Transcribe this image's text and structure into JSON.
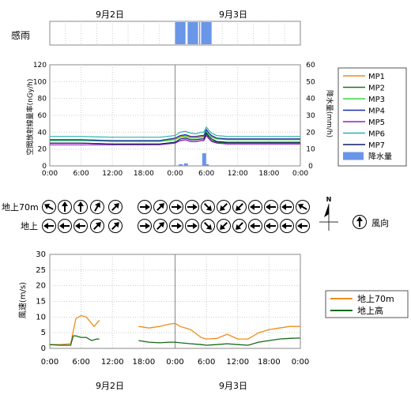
{
  "labels": {
    "date_top_left": "9月2日",
    "date_top_right": "9月3日",
    "date_bottom_left": "9月2日",
    "date_bottom_right": "9月3日",
    "rain_sense": "感雨",
    "ylabel_left": "空間放射線量率(nGy/h)",
    "ylabel_right": "降水量(mm/h)",
    "wind_row_upper": "地上70m",
    "wind_row_lower": "地上",
    "wind_dir_legend": "風向",
    "north": "N",
    "ylabel_wind": "風速(m/s)"
  },
  "colors": {
    "MP1": "#f08c1e",
    "MP2": "#137a13",
    "MP3": "#38d838",
    "MP4": "#1a2ab8",
    "MP5": "#9a1ac2",
    "MP6": "#28b4b4",
    "MP7": "#101a6a",
    "rain": "#6a96e8",
    "wind70": "#f08c1e",
    "windGround": "#136a13"
  },
  "time_ticks": [
    "0:00",
    "6:00",
    "12:00",
    "18:00",
    "0:00",
    "6:00",
    "12:00",
    "18:00",
    "0:00"
  ],
  "chart_data": [
    {
      "type": "bar",
      "name": "rain_sense",
      "x_unit": "hours from 9月2日 0:00",
      "xlim": [
        0,
        48
      ],
      "rain_sensed_intervals": [
        [
          24.0,
          26.0
        ],
        [
          26.4,
          28.4
        ],
        [
          28.6,
          28.8
        ],
        [
          29.0,
          31.0
        ]
      ]
    },
    {
      "type": "line",
      "name": "dose_rate",
      "ylim_left": [
        0,
        120
      ],
      "yticks_left": [
        0,
        20,
        40,
        60,
        80,
        100,
        120
      ],
      "ylim_right": [
        0,
        60
      ],
      "yticks_right": [
        0,
        10,
        20,
        30,
        40,
        50,
        60
      ],
      "xlim": [
        0,
        48
      ],
      "x": [
        0,
        6,
        12,
        18,
        21,
        24,
        25,
        26,
        27,
        28,
        29,
        29.5,
        30,
        30.5,
        31,
        32,
        34,
        36,
        42,
        48
      ],
      "series": [
        {
          "name": "MP1",
          "values": [
            31,
            31,
            30,
            30,
            30,
            32,
            35,
            36,
            34,
            34,
            35,
            35,
            42,
            38,
            35,
            33,
            32,
            32,
            32,
            32
          ]
        },
        {
          "name": "MP2",
          "values": [
            27,
            27,
            26,
            26,
            26,
            28,
            30,
            31,
            29,
            29,
            30,
            30,
            37,
            33,
            30,
            28,
            27,
            27,
            27,
            27
          ]
        },
        {
          "name": "MP3",
          "values": [
            30,
            30,
            29,
            29,
            29,
            31,
            34,
            35,
            33,
            33,
            34,
            34,
            41,
            37,
            34,
            32,
            31,
            31,
            31,
            31
          ]
        },
        {
          "name": "MP4",
          "values": [
            31,
            31,
            30,
            30,
            30,
            33,
            36,
            37,
            35,
            35,
            36,
            36,
            43,
            39,
            36,
            33,
            32,
            32,
            32,
            32
          ]
        },
        {
          "name": "MP5",
          "values": [
            25,
            25,
            25,
            25,
            25,
            27,
            30,
            31,
            29,
            29,
            30,
            30,
            36,
            32,
            29,
            27,
            26,
            26,
            26,
            26
          ]
        },
        {
          "name": "MP6",
          "values": [
            35,
            35,
            34,
            34,
            34,
            36,
            40,
            41,
            39,
            38,
            40,
            40,
            46,
            42,
            39,
            36,
            35,
            35,
            35,
            35
          ]
        },
        {
          "name": "MP7",
          "values": [
            27,
            27,
            26,
            26,
            26,
            28,
            32,
            33,
            31,
            31,
            32,
            32,
            39,
            35,
            32,
            29,
            28,
            28,
            28,
            28
          ]
        }
      ],
      "rain_series": {
        "name": "降水量",
        "x": [
          25,
          26,
          29.5,
          30
        ],
        "values": [
          1.0,
          1.5,
          7.5,
          1.0
        ]
      },
      "legend": [
        "MP1",
        "MP2",
        "MP3",
        "MP4",
        "MP5",
        "MP6",
        "MP7",
        "降水量"
      ],
      "legend_position": "right"
    },
    {
      "type": "table",
      "name": "wind_direction",
      "x_unit": "hours from 9月2日 0:00",
      "times_upper": [
        0,
        3,
        6,
        9,
        12,
        18,
        21,
        24,
        27,
        30,
        33,
        36,
        39,
        42,
        45,
        48
      ],
      "angles_upper_deg": [
        300,
        0,
        0,
        30,
        45,
        90,
        45,
        90,
        90,
        135,
        225,
        225,
        270,
        270,
        270,
        300
      ],
      "times_lower": [
        0,
        3,
        6,
        9,
        12,
        18,
        21,
        24,
        27,
        30,
        33,
        36,
        39,
        42,
        45,
        48
      ],
      "angles_lower_deg": [
        270,
        270,
        270,
        45,
        45,
        90,
        45,
        90,
        90,
        135,
        225,
        225,
        270,
        270,
        270,
        270
      ]
    },
    {
      "type": "line",
      "name": "wind_speed",
      "ylim": [
        0,
        30
      ],
      "yticks": [
        0,
        5,
        10,
        15,
        20,
        25,
        30
      ],
      "xlim": [
        0,
        48
      ],
      "series": [
        {
          "name": "地上70m",
          "x": [
            0,
            2,
            4,
            5,
            6,
            7,
            8,
            8.5,
            9,
            9.5,
            null,
            17,
            19,
            21,
            23,
            24,
            25,
            27,
            29,
            30,
            32,
            34,
            36,
            38,
            40,
            42,
            44,
            46,
            48
          ],
          "values": [
            1.2,
            1.2,
            1.5,
            9.5,
            10.5,
            10,
            8,
            7,
            8,
            9,
            null,
            7,
            6.5,
            7,
            7.8,
            8,
            7,
            6,
            3.5,
            3,
            3.2,
            4.5,
            3,
            3,
            5,
            6,
            6.5,
            7,
            7
          ]
        },
        {
          "name": "地上高",
          "x": [
            0,
            2,
            3,
            4,
            4.5,
            5,
            6,
            7,
            8,
            9,
            9.5,
            null,
            17,
            19,
            21,
            23,
            24,
            25,
            27,
            29,
            30,
            32,
            34,
            36,
            38,
            40,
            42,
            44,
            46,
            48
          ],
          "values": [
            1.2,
            1.0,
            1.0,
            1.0,
            4.0,
            4.0,
            3.5,
            3.5,
            2.5,
            3.0,
            3.0,
            null,
            2.5,
            2.0,
            1.8,
            2.0,
            2.0,
            1.8,
            1.5,
            1.2,
            1.0,
            1.2,
            1.5,
            1.2,
            1.0,
            2.0,
            2.5,
            3.0,
            3.2,
            3.3
          ]
        }
      ],
      "legend": [
        "地上70m",
        "地上高"
      ],
      "legend_position": "right"
    }
  ]
}
